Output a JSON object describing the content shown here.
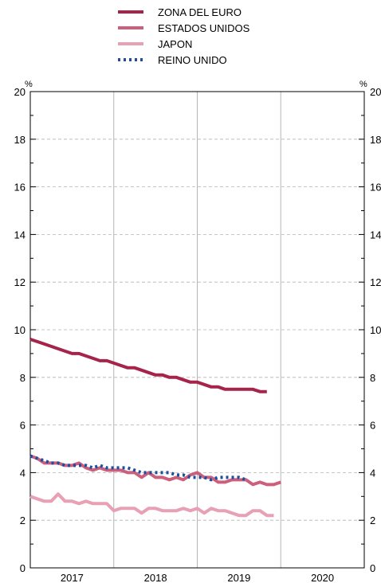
{
  "chart_data": {
    "type": "line",
    "y_unit_left": "%",
    "y_unit_right": "%",
    "ylim": [
      0,
      20
    ],
    "y_ticks": [
      "0",
      "2",
      "4",
      "6",
      "8",
      "10",
      "12",
      "14",
      "16",
      "18",
      "20"
    ],
    "x_categories": [
      "2017",
      "2018",
      "2019",
      "2020"
    ],
    "grid": true,
    "legend_placement": "top-center",
    "series": [
      {
        "name": "ZONA DEL EURO",
        "color": "#a6234a",
        "style": "solid",
        "start": "2016-12",
        "values": [
          9.6,
          9.5,
          9.4,
          9.3,
          9.2,
          9.1,
          9.0,
          9.0,
          8.9,
          8.8,
          8.7,
          8.7,
          8.6,
          8.5,
          8.4,
          8.4,
          8.3,
          8.2,
          8.1,
          8.1,
          8.0,
          8.0,
          7.9,
          7.8,
          7.8,
          7.7,
          7.6,
          7.6,
          7.5,
          7.5,
          7.5,
          7.5,
          7.5,
          7.4,
          7.4
        ]
      },
      {
        "name": "ESTADOS UNIDOS",
        "color": "#cc5f7c",
        "style": "solid",
        "start": "2016-12",
        "values": [
          4.7,
          4.6,
          4.4,
          4.4,
          4.4,
          4.3,
          4.3,
          4.4,
          4.2,
          4.1,
          4.2,
          4.1,
          4.1,
          4.1,
          4.0,
          4.0,
          3.8,
          4.0,
          3.8,
          3.8,
          3.7,
          3.8,
          3.7,
          3.9,
          4.0,
          3.8,
          3.8,
          3.6,
          3.6,
          3.7,
          3.7,
          3.7,
          3.5,
          3.6,
          3.5,
          3.5,
          3.6
        ]
      },
      {
        "name": "JAPON",
        "color": "#e8a0b4",
        "style": "solid",
        "start": "2016-12",
        "values": [
          3.0,
          2.9,
          2.8,
          2.8,
          3.1,
          2.8,
          2.8,
          2.7,
          2.8,
          2.7,
          2.7,
          2.7,
          2.4,
          2.5,
          2.5,
          2.5,
          2.3,
          2.5,
          2.5,
          2.4,
          2.4,
          2.4,
          2.5,
          2.4,
          2.5,
          2.3,
          2.5,
          2.4,
          2.4,
          2.3,
          2.2,
          2.2,
          2.4,
          2.4,
          2.2,
          2.2
        ]
      },
      {
        "name": "REINO UNIDO",
        "color": "#1f4e9c",
        "style": "dotted",
        "start": "2016-12",
        "values": [
          4.7,
          4.6,
          4.5,
          4.4,
          4.4,
          4.3,
          4.3,
          4.3,
          4.3,
          4.2,
          4.3,
          4.2,
          4.2,
          4.2,
          4.2,
          4.1,
          4.0,
          4.0,
          4.0,
          4.0,
          4.0,
          3.9,
          3.9,
          3.8,
          3.8,
          3.8,
          3.7,
          3.8,
          3.8,
          3.8,
          3.8,
          3.7
        ]
      }
    ]
  }
}
